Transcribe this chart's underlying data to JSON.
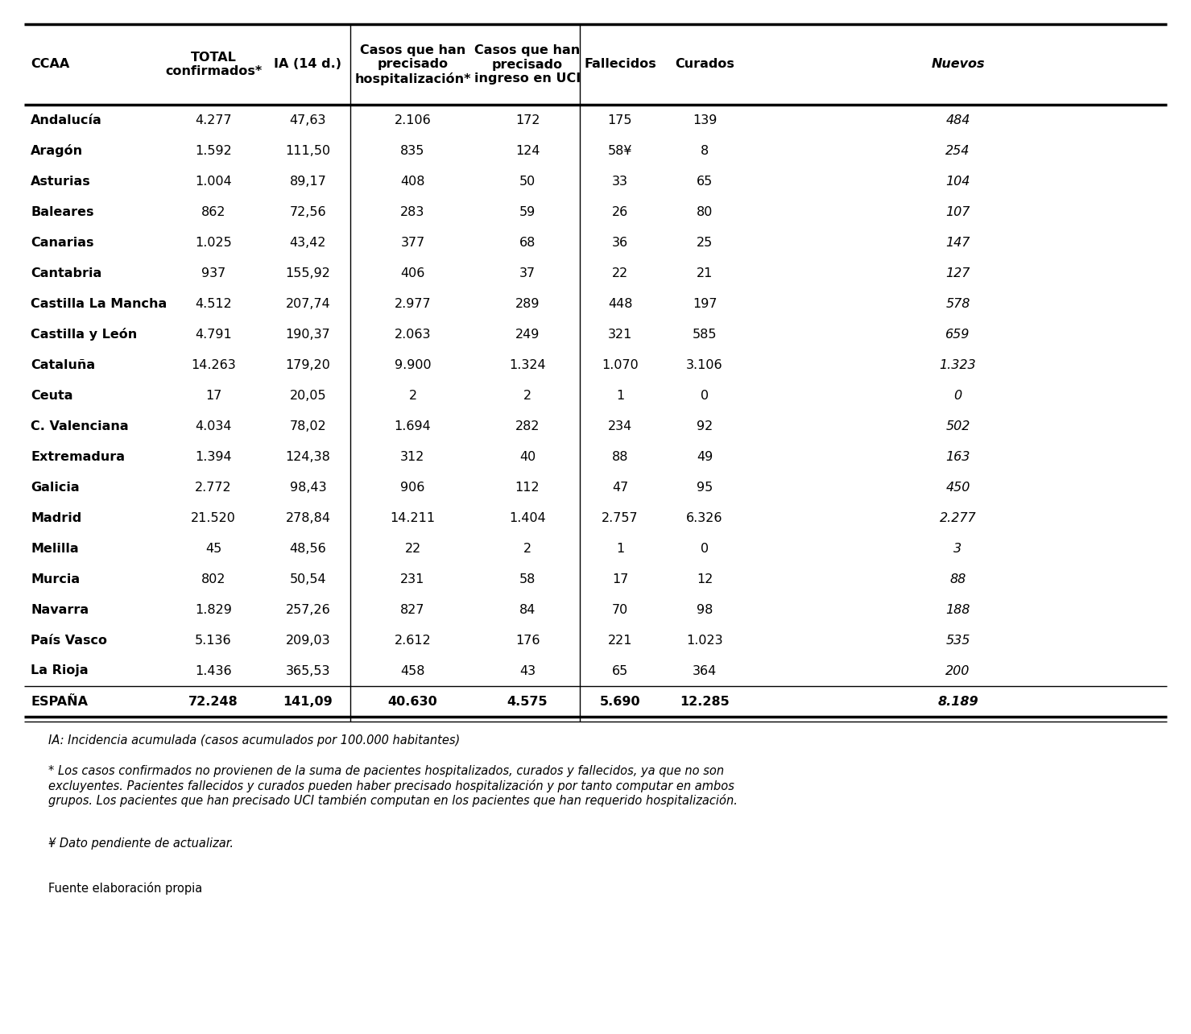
{
  "col_headers": [
    "CCAA",
    "TOTAL\nconfirmados*",
    "IA (14 d.)",
    "Casos que han\nprecisado\nhospitalización*",
    "Casos que han\nprecisado\ningreso en UCI",
    "Fallecidos",
    "Curados",
    "Nuevos"
  ],
  "rows": [
    [
      "Andalucía",
      "4.277",
      "47,63",
      "2.106",
      "172",
      "175",
      "139",
      "484"
    ],
    [
      "Aragón",
      "1.592",
      "111,50",
      "835",
      "124",
      "58¥",
      "8",
      "254"
    ],
    [
      "Asturias",
      "1.004",
      "89,17",
      "408",
      "50",
      "33",
      "65",
      "104"
    ],
    [
      "Baleares",
      "862",
      "72,56",
      "283",
      "59",
      "26",
      "80",
      "107"
    ],
    [
      "Canarias",
      "1.025",
      "43,42",
      "377",
      "68",
      "36",
      "25",
      "147"
    ],
    [
      "Cantabria",
      "937",
      "155,92",
      "406",
      "37",
      "22",
      "21",
      "127"
    ],
    [
      "Castilla La Mancha",
      "4.512",
      "207,74",
      "2.977",
      "289",
      "448",
      "197",
      "578"
    ],
    [
      "Castilla y León",
      "4.791",
      "190,37",
      "2.063",
      "249",
      "321",
      "585",
      "659"
    ],
    [
      "Cataluña",
      "14.263",
      "179,20",
      "9.900",
      "1.324",
      "1.070",
      "3.106",
      "1.323"
    ],
    [
      "Ceuta",
      "17",
      "20,05",
      "2",
      "2",
      "1",
      "0",
      "0"
    ],
    [
      "C. Valenciana",
      "4.034",
      "78,02",
      "1.694",
      "282",
      "234",
      "92",
      "502"
    ],
    [
      "Extremadura",
      "1.394",
      "124,38",
      "312",
      "40",
      "88",
      "49",
      "163"
    ],
    [
      "Galicia",
      "2.772",
      "98,43",
      "906",
      "112",
      "47",
      "95",
      "450"
    ],
    [
      "Madrid",
      "21.520",
      "278,84",
      "14.211",
      "1.404",
      "2.757",
      "6.326",
      "2.277"
    ],
    [
      "Melilla",
      "45",
      "48,56",
      "22",
      "2",
      "1",
      "0",
      "3"
    ],
    [
      "Murcia",
      "802",
      "50,54",
      "231",
      "58",
      "17",
      "12",
      "88"
    ],
    [
      "Navarra",
      "1.829",
      "257,26",
      "827",
      "84",
      "70",
      "98",
      "188"
    ],
    [
      "País Vasco",
      "5.136",
      "209,03",
      "2.612",
      "176",
      "221",
      "1.023",
      "535"
    ],
    [
      "La Rioja",
      "1.436",
      "365,53",
      "458",
      "43",
      "65",
      "364",
      "200"
    ],
    [
      "ESPAÑA",
      "72.248",
      "141,09",
      "40.630",
      "4.575",
      "5.690",
      "12.285",
      "8.189"
    ]
  ],
  "footer_ia": "IA: Incidencia acumulada (casos acumulados por 100.000 habitantes)",
  "footer_star": "* Los casos confirmados no provienen de la suma de pacientes hospitalizados, curados y fallecidos, ya que no son\nexcluyentes. Pacientes fallecidos y curados pueden haber precisado hospitalización y por tanto computar en ambos\ngrupos. Los pacientes que han precisado UCI también computan en los pacientes que han requerido hospitalización.",
  "footer_yen": "¥ Dato pendiente de actualizar.",
  "footer_fuente": "Fuente elaboración propia",
  "background_color": "#ffffff"
}
